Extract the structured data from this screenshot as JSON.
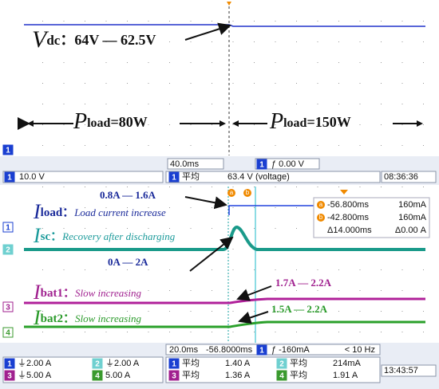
{
  "top": {
    "vdc": {
      "symbol": "V",
      "sub": "dc",
      "text": "：64V — 62.5V"
    },
    "pload_left": {
      "symbol": "P",
      "sub": "load",
      "text": "=80W"
    },
    "pload_right": {
      "symbol": "P",
      "sub": "load",
      "text": "=150W"
    },
    "marker": "1"
  },
  "top_status": {
    "timebase": "40.0ms",
    "trigger": {
      "ch": "1",
      "text": "ƒ 0.00 V"
    },
    "scale": {
      "ch": "1",
      "text": "10.0 V"
    },
    "measure": {
      "ch": "1",
      "label": "平均",
      "value": "63.4 V",
      "note": "(voltage)"
    },
    "time": "08:36:36"
  },
  "bottom": {
    "iload": {
      "symbol": "I",
      "sub": "load：",
      "note": "Load current increase",
      "change": "0.8A — 1.6A"
    },
    "isc": {
      "symbol": "I",
      "sub": "sc：",
      "note": "Recovery after discharging",
      "change": "0A — 2A"
    },
    "ibat1": {
      "symbol": "I",
      "sub": "bat1：",
      "note": "Slow increasing",
      "change": "1.7A — 2.2A"
    },
    "ibat2": {
      "symbol": "I",
      "sub": "bat2：",
      "note": "Slow increasing",
      "change": "1.5A — 2.2A"
    },
    "cursor_badges": [
      "a",
      "b"
    ],
    "cursor_rows": [
      {
        "badge": "a",
        "time": "-56.800ms",
        "value": "160mA"
      },
      {
        "badge": "b",
        "time": "-42.800ms",
        "value": "160mA"
      },
      {
        "badge": "",
        "time": "Δ14.000ms",
        "value": "Δ0.00 A"
      }
    ],
    "markers": [
      "1",
      "2",
      "3",
      "4"
    ]
  },
  "bottom_status": {
    "timebase": "20.0ms",
    "delay": "-56.8000ms",
    "trigger": {
      "ch": "1",
      "text": "ƒ -160mA"
    },
    "freq": "< 10 Hz",
    "scales": [
      {
        "ch": "1",
        "text": "⏚2.00 A"
      },
      {
        "ch": "2",
        "text": "⏚2.00 A"
      },
      {
        "ch": "3",
        "text": "⏚5.00 A"
      },
      {
        "ch": "4",
        "text": "5.00 A"
      }
    ],
    "measures": [
      {
        "ch": "1",
        "label": "平均",
        "value": "1.40 A"
      },
      {
        "ch": "2",
        "label": "平均",
        "value": "214mA"
      },
      {
        "ch": "3",
        "label": "平均",
        "value": "1.36 A"
      },
      {
        "ch": "4",
        "label": "平均",
        "value": "1.91 A"
      }
    ],
    "time": "13:43:57"
  }
}
